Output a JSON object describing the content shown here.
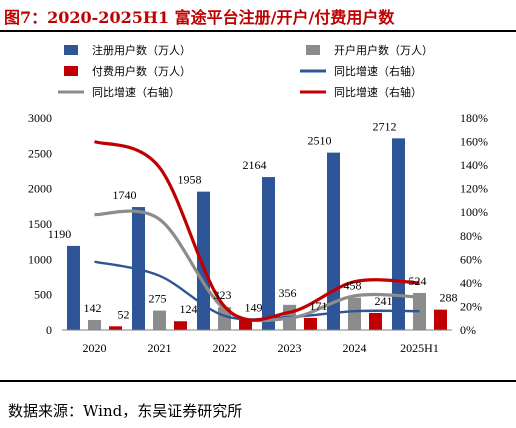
{
  "header": {
    "title": "图7：2020-2025H1 富途平台注册/开户/付费用户数"
  },
  "footer": {
    "source": "数据来源：Wind，东吴证券研究所"
  },
  "colors": {
    "registered": "#2e5597",
    "opened": "#8c8c8c",
    "paid": "#c00000",
    "registered_growth": "#2e5597",
    "opened_growth": "#8c8c8c",
    "paid_growth": "#c00000"
  },
  "chart_data": {
    "type": "bar",
    "title": "",
    "xlabel": "",
    "ylabel": "",
    "categories": [
      "2020",
      "2021",
      "2022",
      "2023",
      "2024",
      "2025H1"
    ],
    "ylim": [
      0,
      3000
    ],
    "y_ticks": [
      0,
      500,
      1000,
      1500,
      2000,
      2500,
      3000
    ],
    "y2lim": [
      0,
      180
    ],
    "y2_ticks": [
      "0%",
      "20%",
      "40%",
      "60%",
      "80%",
      "100%",
      "120%",
      "140%",
      "160%",
      "180%"
    ],
    "grid": false,
    "legend_position": "top",
    "series": [
      {
        "name": "注册用户数（万人）",
        "kind": "bar",
        "axis": "left",
        "values": [
          1190,
          1740,
          1958,
          2164,
          2510,
          2712
        ],
        "labels": [
          "1190",
          "1740",
          "1958",
          "2164",
          "2510",
          "2712"
        ]
      },
      {
        "name": "开户用户数（万人）",
        "kind": "bar",
        "axis": "left",
        "values": [
          142,
          275,
          323,
          356,
          458,
          524
        ],
        "labels": [
          "142",
          "275",
          "323",
          "356",
          "458",
          "524"
        ]
      },
      {
        "name": "付费用户数（万人）",
        "kind": "bar",
        "axis": "left",
        "values": [
          52,
          124,
          149,
          171,
          241,
          288
        ],
        "labels": [
          "52",
          "124",
          "149",
          "171",
          "241",
          "288"
        ]
      },
      {
        "name": "同比增速（右轴）",
        "kind": "line",
        "axis": "right",
        "values": [
          58,
          46,
          12,
          11,
          16,
          16
        ]
      },
      {
        "name": "同比增速（右轴）",
        "kind": "line",
        "axis": "right",
        "values": [
          98,
          94,
          18,
          10,
          29,
          28
        ]
      },
      {
        "name": "同比增速（右轴）",
        "kind": "line",
        "axis": "right",
        "values": [
          160,
          138,
          20,
          15,
          41,
          40
        ]
      }
    ]
  }
}
